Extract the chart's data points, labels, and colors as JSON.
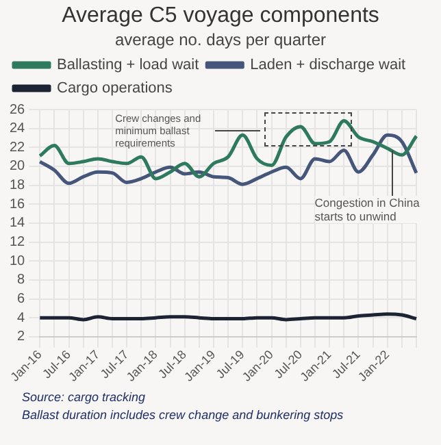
{
  "chart_data": {
    "type": "line",
    "title": "Average C5 voyage components",
    "subtitle": "average no. days per quarter",
    "categories": [
      "Jan-16",
      null,
      "Jul-16",
      null,
      "Jan-17",
      null,
      "Jul-17",
      null,
      "Jan-18",
      null,
      "Jul-18",
      null,
      "Jan-19",
      null,
      "Jul-19",
      null,
      "Jan-20",
      null,
      "Jul-20",
      null,
      "Jan-21",
      null,
      "Jul-21",
      null,
      "Jan-22",
      null,
      null
    ],
    "series": [
      {
        "name": "Ballasting + load wait",
        "color": "#2e7a5e",
        "values": [
          21.1,
          22.2,
          20.3,
          20.5,
          20.8,
          20.5,
          20.3,
          21.0,
          18.7,
          19.4,
          20.3,
          18.9,
          20.3,
          21.0,
          23.3,
          20.8,
          20.1,
          23.1,
          24.2,
          22.4,
          22.6,
          24.8,
          23.1,
          22.6,
          21.9,
          21.2,
          23.2
        ]
      },
      {
        "name": "Laden + discharge wait",
        "color": "#46567a",
        "values": [
          20.5,
          19.6,
          18.2,
          18.9,
          19.4,
          19.3,
          18.3,
          18.7,
          19.4,
          19.9,
          19.2,
          19.4,
          18.9,
          18.8,
          18.1,
          18.7,
          19.4,
          19.9,
          18.7,
          20.8,
          20.5,
          21.7,
          19.4,
          21.2,
          23.3,
          22.6,
          19.3
        ]
      },
      {
        "name": "Cargo operations",
        "color": "#1c2434",
        "values": [
          4.0,
          4.0,
          4.0,
          3.8,
          4.1,
          3.9,
          3.9,
          3.9,
          4.0,
          4.1,
          4.1,
          4.0,
          3.9,
          3.9,
          3.9,
          4.0,
          4.0,
          3.8,
          3.9,
          4.0,
          4.0,
          4.0,
          4.2,
          4.3,
          4.4,
          4.3,
          3.9
        ]
      }
    ],
    "ylim": [
      2,
      26
    ],
    "yticks": [
      2,
      4,
      6,
      8,
      10,
      12,
      14,
      16,
      18,
      20,
      22,
      24,
      26
    ],
    "grid": true,
    "legend": "top",
    "marker": "none",
    "line_style": "solid",
    "annotations": [
      "Crew changes and minimum ballast requirements",
      "Congestion in China starts to unwind",
      "Source: cargo tracking",
      "Ballast duration includes crew change and bunkering stops"
    ]
  }
}
